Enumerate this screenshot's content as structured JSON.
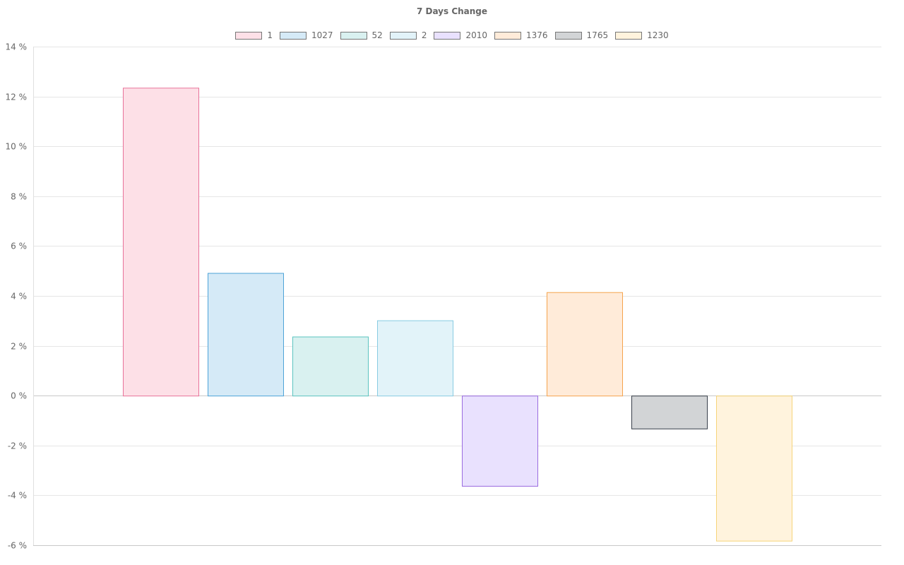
{
  "chart_data": {
    "type": "bar",
    "title": "7 Days Change",
    "xlabel": "",
    "ylabel": "",
    "ylim": [
      -6,
      14
    ],
    "y_ticks": [
      -6,
      -4,
      -2,
      0,
      2,
      4,
      6,
      8,
      10,
      12,
      14
    ],
    "y_tick_suffix": " %",
    "grid": true,
    "legend_position": "top",
    "series": [
      {
        "name": "1",
        "value": 12.35,
        "color": "#e8739a",
        "fill": "#fde0e7"
      },
      {
        "name": "1027",
        "value": 4.92,
        "color": "#4ea3d8",
        "fill": "#d5eaf7"
      },
      {
        "name": "52",
        "value": 2.37,
        "color": "#5cc4c0",
        "fill": "#d9f1f0"
      },
      {
        "name": "2",
        "value": 3.02,
        "color": "#88cbe2",
        "fill": "#e2f3f9"
      },
      {
        "name": "2010",
        "value": -3.62,
        "color": "#9a6be0",
        "fill": "#e9e1fe"
      },
      {
        "name": "1376",
        "value": 4.15,
        "color": "#f5a44d",
        "fill": "#ffebd9"
      },
      {
        "name": "1765",
        "value": -1.32,
        "color": "#383f4a",
        "fill": "#d2d4d6"
      },
      {
        "name": "1230",
        "value": -5.82,
        "color": "#f6d47a",
        "fill": "#fff3dd"
      }
    ]
  }
}
